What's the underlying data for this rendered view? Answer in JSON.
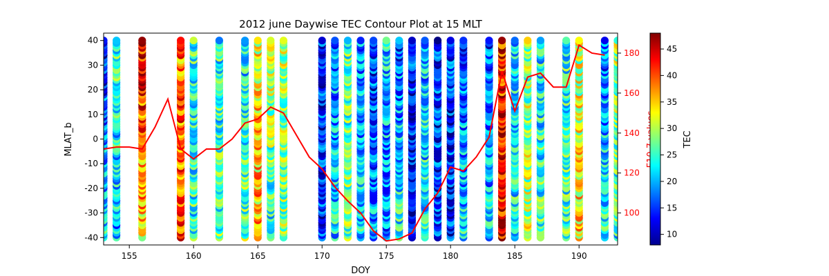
{
  "chart_data": {
    "type": "scatter",
    "title": "2012 june Daywise TEC Contour Plot at 15 MLT",
    "xlabel": "DOY",
    "ylabel": "MLAT_b",
    "ylabel_right": "F10.7 values",
    "colorbar_label": "TEC",
    "colormap": "jet",
    "xlim": [
      153,
      193
    ],
    "ylim": [
      -43,
      43
    ],
    "y2lim": [
      84,
      190
    ],
    "clim": [
      8,
      48
    ],
    "x_ticks": [
      155,
      160,
      165,
      170,
      175,
      180,
      185,
      190
    ],
    "y_ticks": [
      -40,
      -30,
      -20,
      -10,
      0,
      10,
      20,
      30,
      40
    ],
    "y2_ticks": [
      100,
      120,
      140,
      160,
      180
    ],
    "c_ticks": [
      10,
      15,
      20,
      25,
      30,
      35,
      40,
      45
    ],
    "scatter_series": {
      "name": "TEC",
      "mlat_range": [
        -40,
        40
      ],
      "days": [
        {
          "doy": 153,
          "tec_south": 22,
          "tec_north": 14
        },
        {
          "doy": 154,
          "tec_south": 20,
          "tec_north": 26
        },
        {
          "doy": 156,
          "tec_south": 33,
          "tec_north": 44
        },
        {
          "doy": 159,
          "tec_south": 40,
          "tec_north": 38
        },
        {
          "doy": 160,
          "tec_south": 24,
          "tec_north": 25
        },
        {
          "doy": 162,
          "tec_south": 26,
          "tec_north": 24
        },
        {
          "doy": 164,
          "tec_south": 28,
          "tec_north": 22
        },
        {
          "doy": 165,
          "tec_south": 36,
          "tec_north": 32
        },
        {
          "doy": 166,
          "tec_south": 22,
          "tec_north": 34
        },
        {
          "doy": 167,
          "tec_south": 28,
          "tec_north": 30
        },
        {
          "doy": 170,
          "tec_south": 14,
          "tec_north": 15
        },
        {
          "doy": 171,
          "tec_south": 22,
          "tec_north": 18
        },
        {
          "doy": 172,
          "tec_south": 28,
          "tec_north": 26
        },
        {
          "doy": 173,
          "tec_south": 22,
          "tec_north": 18
        },
        {
          "doy": 174,
          "tec_south": 20,
          "tec_north": 14
        },
        {
          "doy": 175,
          "tec_south": 18,
          "tec_north": 22
        },
        {
          "doy": 176,
          "tec_south": 24,
          "tec_north": 16
        },
        {
          "doy": 177,
          "tec_south": 12,
          "tec_north": 14
        },
        {
          "doy": 178,
          "tec_south": 24,
          "tec_north": 20
        },
        {
          "doy": 179,
          "tec_south": 16,
          "tec_north": 14
        },
        {
          "doy": 180,
          "tec_south": 14,
          "tec_north": 15
        },
        {
          "doy": 181,
          "tec_south": 22,
          "tec_north": 16
        },
        {
          "doy": 183,
          "tec_south": 22,
          "tec_north": 16
        },
        {
          "doy": 184,
          "tec_south": 44,
          "tec_north": 42
        },
        {
          "doy": 185,
          "tec_south": 24,
          "tec_north": 22
        },
        {
          "doy": 186,
          "tec_south": 30,
          "tec_north": 28
        },
        {
          "doy": 187,
          "tec_south": 26,
          "tec_north": 22
        },
        {
          "doy": 189,
          "tec_south": 26,
          "tec_north": 24
        },
        {
          "doy": 190,
          "tec_south": 34,
          "tec_north": 30
        },
        {
          "doy": 192,
          "tec_south": 24,
          "tec_north": 16
        },
        {
          "doy": 193,
          "tec_south": 24,
          "tec_north": 30
        }
      ]
    },
    "line_series": {
      "name": "F10.7 values",
      "color": "#ff0000",
      "x": [
        153,
        154,
        155,
        156,
        157,
        158,
        159,
        160,
        161,
        162,
        163,
        164,
        165,
        166,
        167,
        168,
        169,
        170,
        171,
        172,
        173,
        174,
        175,
        176,
        177,
        178,
        179,
        180,
        181,
        182,
        183,
        184,
        185,
        186,
        187,
        188,
        189,
        190,
        191,
        192
      ],
      "y": [
        132,
        133,
        133,
        132,
        143,
        157,
        132,
        127,
        132,
        132,
        137,
        145,
        147,
        153,
        150,
        139,
        128,
        122,
        113,
        106,
        100,
        91,
        86,
        87,
        90,
        102,
        110,
        123,
        121,
        128,
        138,
        171,
        151,
        168,
        170,
        163,
        163,
        184,
        180,
        179
      ]
    },
    "grid": false,
    "legend": "none"
  }
}
